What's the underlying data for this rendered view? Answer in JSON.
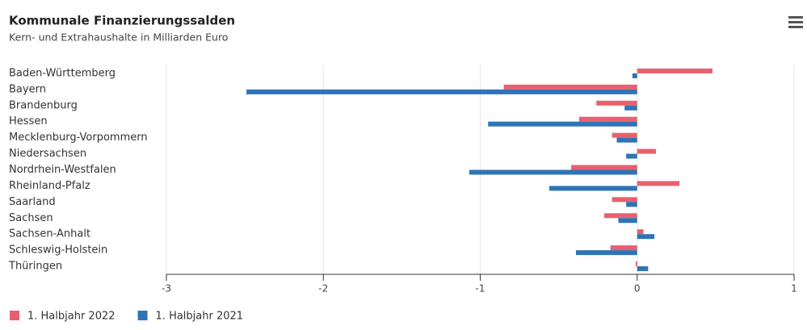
{
  "chart_data": {
    "type": "hbar",
    "title": "Kommunale Finanzierungssalden",
    "subtitle": "Kern- und Extrahaushalte in Milliarden Euro",
    "categories": [
      "Baden-Württemberg",
      "Bayern",
      "Brandenburg",
      "Hessen",
      "Mecklenburg-Vorpommern",
      "Niedersachsen",
      "Nordrhein-Westfalen",
      "Rheinland-Pfalz",
      "Saarland",
      "Sachsen",
      "Sachsen-Anhalt",
      "Schleswig-Holstein",
      "Thüringen"
    ],
    "series": [
      {
        "name": "1. Halbjahr 2022",
        "color": "#e8606f",
        "values": [
          0.48,
          -0.85,
          -0.26,
          -0.37,
          -0.16,
          0.12,
          -0.42,
          0.27,
          -0.16,
          -0.21,
          0.04,
          -0.17,
          -0.01
        ]
      },
      {
        "name": "1. Halbjahr 2021",
        "color": "#2f74b5",
        "values": [
          -0.03,
          -2.49,
          -0.08,
          -0.95,
          -0.13,
          -0.07,
          -1.07,
          -0.56,
          -0.07,
          -0.12,
          0.11,
          -0.39,
          0.07
        ]
      }
    ],
    "xlim": [
      -3,
      1
    ],
    "xticks": [
      -3,
      -2,
      -1,
      0,
      1
    ],
    "grid": true,
    "legend": "bottom-left"
  }
}
